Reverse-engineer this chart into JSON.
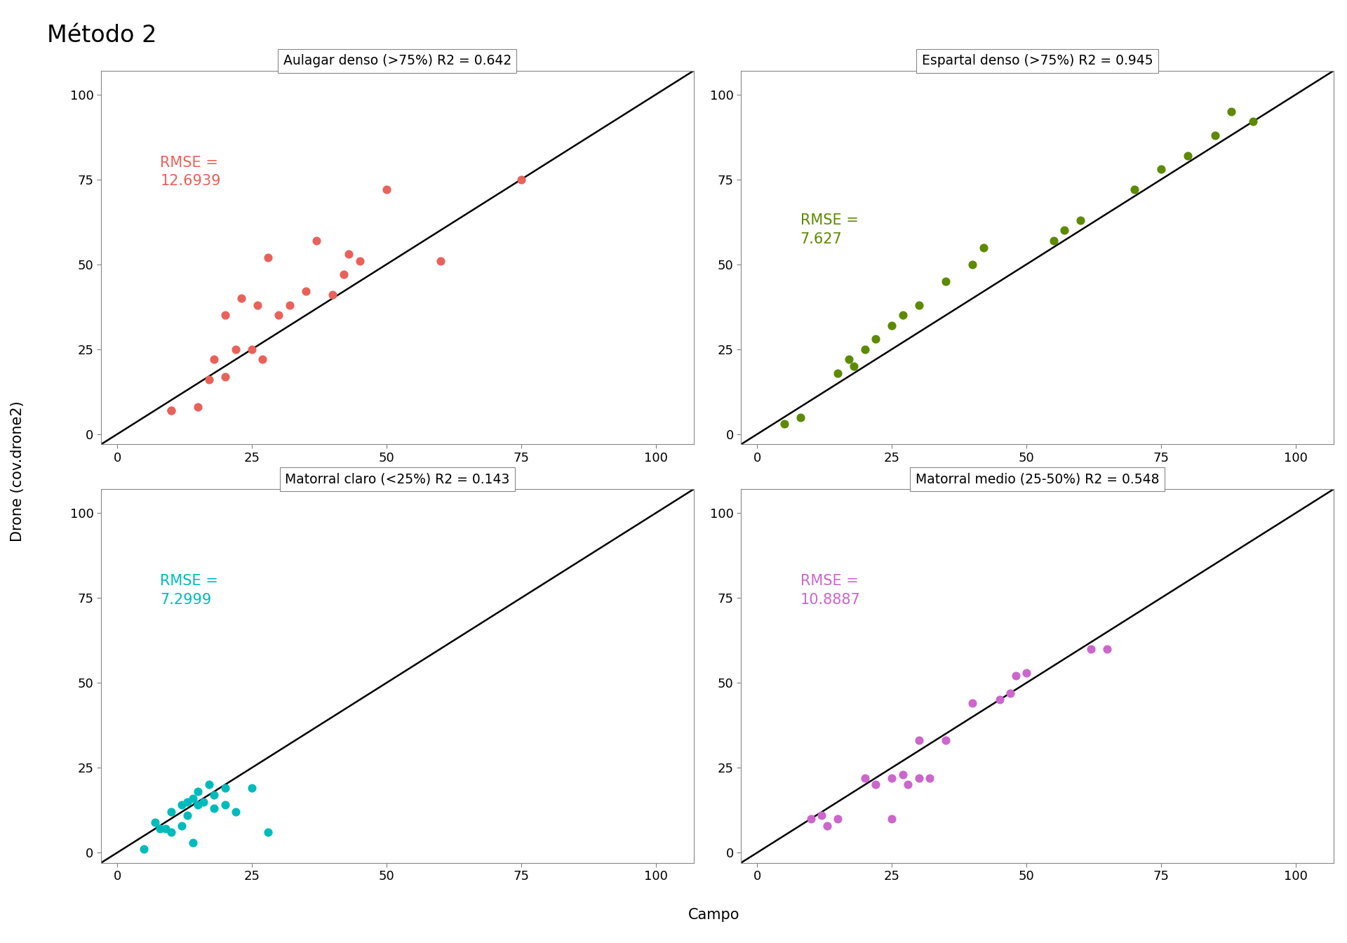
{
  "title": "Método 2",
  "xlabel": "Campo",
  "ylabel": "Drone (cov.drone2)",
  "xlim": [
    -3,
    107
  ],
  "ylim": [
    -3,
    107
  ],
  "line_range": [
    -3,
    107
  ],
  "xticks": [
    0,
    25,
    50,
    75,
    100
  ],
  "yticks": [
    0,
    25,
    50,
    75,
    100
  ],
  "panels": [
    {
      "title": "Aulagar denso (>75%) R2 = 0.642",
      "rmse_label": "RMSE =\n12.6939",
      "color": "#E8625A",
      "rmse_x": 8,
      "rmse_y": 82,
      "x": [
        10,
        10,
        15,
        17,
        18,
        20,
        20,
        22,
        23,
        25,
        26,
        27,
        28,
        30,
        32,
        35,
        37,
        40,
        42,
        43,
        45,
        50,
        60,
        75
      ],
      "y": [
        7,
        7,
        8,
        16,
        22,
        17,
        35,
        25,
        40,
        25,
        38,
        22,
        52,
        35,
        38,
        42,
        57,
        41,
        47,
        53,
        51,
        72,
        51,
        75
      ]
    },
    {
      "title": "Espartal denso (>75%) R2 = 0.945",
      "rmse_label": "RMSE =\n7.627",
      "color": "#5C8A00",
      "rmse_x": 8,
      "rmse_y": 65,
      "x": [
        5,
        8,
        15,
        17,
        18,
        20,
        22,
        25,
        27,
        30,
        35,
        40,
        42,
        55,
        57,
        60,
        70,
        75,
        80,
        85,
        88,
        92
      ],
      "y": [
        3,
        5,
        18,
        22,
        20,
        25,
        28,
        32,
        35,
        38,
        45,
        50,
        55,
        57,
        60,
        63,
        72,
        78,
        82,
        88,
        95,
        92
      ]
    },
    {
      "title": "Matorral claro (<25%) R2 = 0.143",
      "rmse_label": "RMSE =\n7.2999",
      "color": "#00BBBB",
      "rmse_x": 8,
      "rmse_y": 82,
      "x": [
        5,
        7,
        8,
        9,
        10,
        10,
        12,
        12,
        13,
        13,
        14,
        14,
        15,
        15,
        16,
        17,
        18,
        18,
        20,
        20,
        22,
        25,
        28
      ],
      "y": [
        1,
        9,
        7,
        7,
        12,
        6,
        14,
        8,
        15,
        11,
        16,
        3,
        18,
        14,
        15,
        20,
        13,
        17,
        14,
        19,
        12,
        19,
        6
      ]
    },
    {
      "title": "Matorral medio (25-50%) R2 = 0.548",
      "rmse_label": "RMSE =\n10.8887",
      "color": "#CC66CC",
      "rmse_x": 8,
      "rmse_y": 82,
      "x": [
        10,
        12,
        13,
        15,
        20,
        22,
        25,
        25,
        27,
        28,
        30,
        30,
        32,
        35,
        40,
        45,
        47,
        48,
        50,
        62,
        65
      ],
      "y": [
        10,
        11,
        8,
        10,
        22,
        20,
        10,
        22,
        23,
        20,
        22,
        33,
        22,
        33,
        44,
        45,
        47,
        52,
        53,
        60,
        60
      ]
    }
  ]
}
